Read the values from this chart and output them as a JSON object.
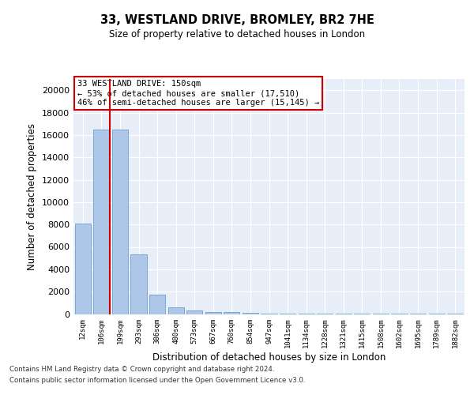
{
  "title1": "33, WESTLAND DRIVE, BROMLEY, BR2 7HE",
  "title2": "Size of property relative to detached houses in London",
  "xlabel": "Distribution of detached houses by size in London",
  "ylabel": "Number of detached properties",
  "categories": [
    "12sqm",
    "106sqm",
    "199sqm",
    "293sqm",
    "386sqm",
    "480sqm",
    "573sqm",
    "667sqm",
    "760sqm",
    "854sqm",
    "947sqm",
    "1041sqm",
    "1134sqm",
    "1228sqm",
    "1321sqm",
    "1415sqm",
    "1508sqm",
    "1602sqm",
    "1695sqm",
    "1789sqm",
    "1882sqm"
  ],
  "values": [
    8050,
    16500,
    16500,
    5300,
    1750,
    600,
    350,
    200,
    150,
    100,
    60,
    40,
    25,
    18,
    12,
    8,
    6,
    5,
    4,
    3,
    2
  ],
  "bar_color": "#aec6e8",
  "bar_edge_color": "#6aa0d4",
  "red_line_x": 1.44,
  "annotation_line1": "33 WESTLAND DRIVE: 150sqm",
  "annotation_line2": "← 53% of detached houses are smaller (17,510)",
  "annotation_line3": "46% of semi-detached houses are larger (15,145) →",
  "annotation_box_color": "#cc0000",
  "ylim": [
    0,
    21000
  ],
  "yticks": [
    0,
    2000,
    4000,
    6000,
    8000,
    10000,
    12000,
    14000,
    16000,
    18000,
    20000
  ],
  "footer1": "Contains HM Land Registry data © Crown copyright and database right 2024.",
  "footer2": "Contains public sector information licensed under the Open Government Licence v3.0.",
  "background_color": "#e8eef8",
  "grid_color": "#ffffff"
}
